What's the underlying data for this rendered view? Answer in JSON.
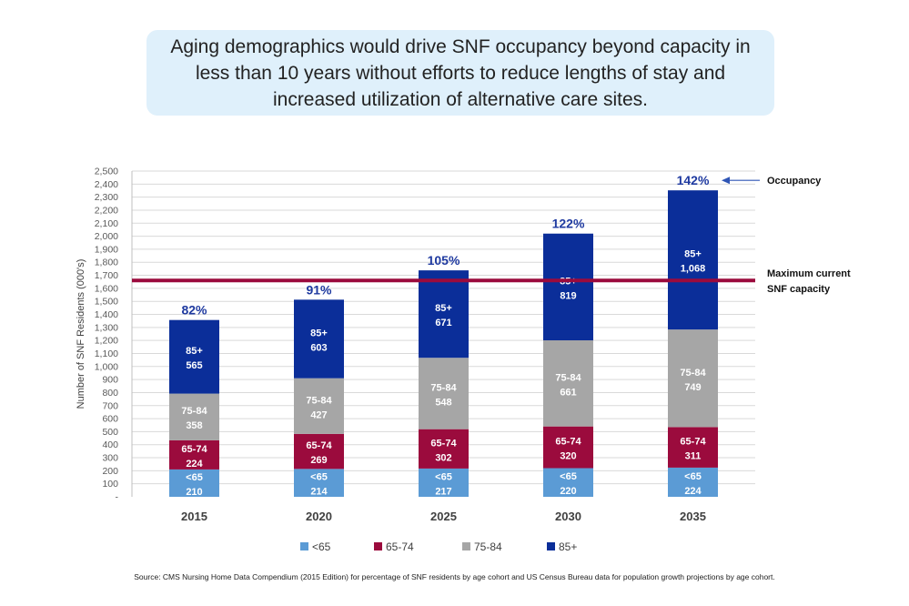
{
  "banner": {
    "text": "Aging demographics would drive SNF occupancy beyond capacity in less than 10 years without efforts to reduce lengths of stay and increased utilization of alternative care sites."
  },
  "chart_data": {
    "type": "bar",
    "stacked": true,
    "categories": [
      "2015",
      "2020",
      "2025",
      "2030",
      "2035"
    ],
    "series": [
      {
        "name": "<65",
        "label": "<65",
        "color": "#5b9bd5",
        "values": [
          210,
          214,
          217,
          220,
          224
        ]
      },
      {
        "name": "65-74",
        "label": "65-74",
        "color": "#9b0b3d",
        "values": [
          224,
          269,
          302,
          320,
          311
        ]
      },
      {
        "name": "75-84",
        "label": "75-84",
        "color": "#a6a6a6",
        "values": [
          358,
          427,
          548,
          661,
          749
        ]
      },
      {
        "name": "85+",
        "label": "85+",
        "color": "#0b2e99",
        "values": [
          565,
          603,
          671,
          819,
          1068
        ]
      }
    ],
    "value_labels": [
      [
        "210",
        "214",
        "217",
        "220",
        "224"
      ],
      [
        "224",
        "269",
        "302",
        "320",
        "311"
      ],
      [
        "358",
        "427",
        "548",
        "661",
        "749"
      ],
      [
        "565",
        "603",
        "671",
        "819",
        "1,068"
      ]
    ],
    "occupancy_labels": [
      "82%",
      "91%",
      "105%",
      "122%",
      "142%"
    ],
    "ylabel": "Number of SNF Residents (000's)",
    "ylim": [
      0,
      2500
    ],
    "ytick_step": 100,
    "ytick_labels": [
      "-",
      "100",
      "200",
      "300",
      "400",
      "500",
      "600",
      "700",
      "800",
      "900",
      "1,000",
      "1,100",
      "1,200",
      "1,300",
      "1,400",
      "1,500",
      "1,600",
      "1,700",
      "1,800",
      "1,900",
      "2,000",
      "2,100",
      "2,200",
      "2,300",
      "2,400",
      "2,500"
    ],
    "capacity_value": 1660,
    "capacity_color": "#9b0b3d",
    "capacity_label": [
      "Maximum current",
      "SNF capacity"
    ],
    "occupancy_annotation": "Occupancy",
    "occupancy_color": "#1f3aa0",
    "grid": true,
    "legend_position": "bottom"
  },
  "source": "Source:  CMS Nursing Home Data Compendium (2015 Edition) for percentage of SNF residents by age cohort and US Census Bureau data for population growth projections by age cohort."
}
